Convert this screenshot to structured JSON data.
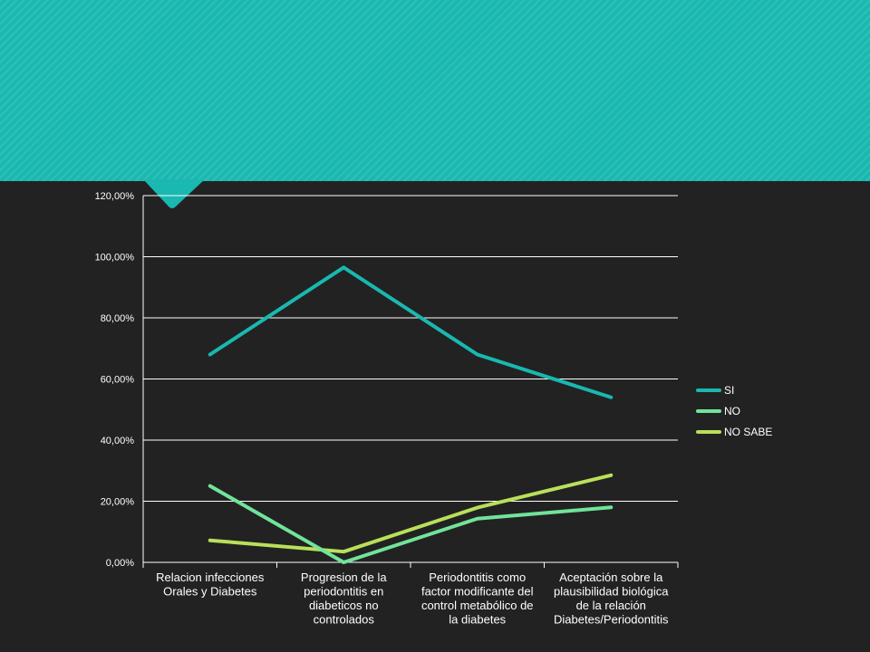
{
  "chart_data": {
    "type": "line",
    "title": "",
    "xlabel": "",
    "ylabel": "",
    "categories": [
      [
        "Relacion infecciones",
        "Orales y Diabetes"
      ],
      [
        "Progresion de la",
        "periodontitis en",
        "diabeticos no",
        "controlados"
      ],
      [
        "Periodontitis como",
        "factor modificante del",
        "control metabólico de",
        "la diabetes"
      ],
      [
        "Aceptación sobre la",
        "plausibilidad biológica",
        "de la relación",
        "Diabetes/Periodontitis"
      ]
    ],
    "ylim": [
      0,
      120
    ],
    "yticks": [
      "0,00%",
      "20,00%",
      "40,00%",
      "60,00%",
      "80,00%",
      "100,00%",
      "120,00%"
    ],
    "grid": true,
    "legend_position": "right",
    "series": [
      {
        "name": "SI",
        "color": "#19b8b0",
        "values": [
          68,
          96.5,
          68,
          54
        ]
      },
      {
        "name": "NO",
        "color": "#72e39a",
        "values": [
          25,
          0,
          14.3,
          18
        ]
      },
      {
        "name": "NO SABE",
        "color": "#b8e05a",
        "values": [
          7.2,
          3.5,
          17.9,
          28.5
        ]
      }
    ]
  }
}
